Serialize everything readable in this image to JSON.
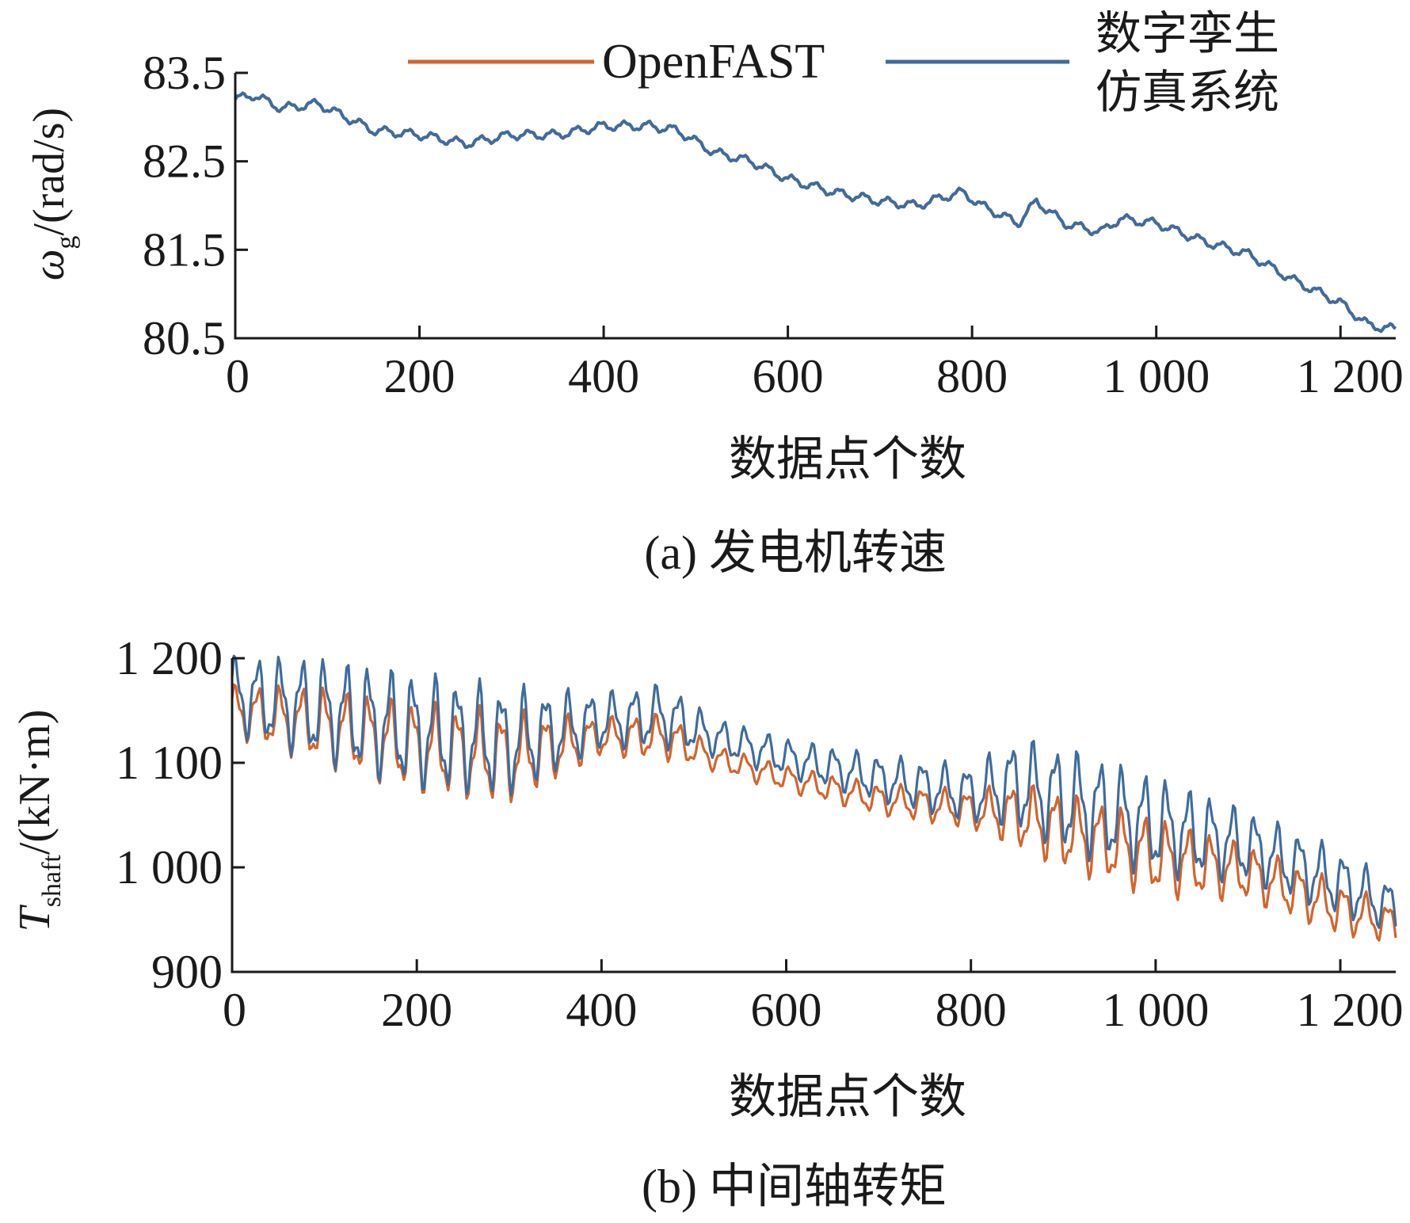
{
  "legend": {
    "openfast_label": "OpenFAST",
    "twin_label_line1": "数字孪生",
    "twin_label_line2": "仿真系统"
  },
  "colors": {
    "openfast": "#D2652C",
    "twin": "#3F6C9E",
    "axis": "#1a1a1a"
  },
  "chart_data": [
    {
      "type": "line",
      "caption_prefix": "(a)",
      "caption": "发电机转速",
      "xlabel": "数据点个数",
      "ylabel_symbol": "ω",
      "ylabel_sub": "g",
      "ylabel_unit": "/(rad/s)",
      "xlim": [
        0,
        1260
      ],
      "ylim": [
        80.5,
        83.5
      ],
      "xticks": [
        0,
        200,
        400,
        600,
        800,
        1000,
        1200
      ],
      "xtick_labels": [
        "0",
        "200",
        "400",
        "600",
        "800",
        "1 000",
        "1 200"
      ],
      "yticks": [
        80.5,
        81.5,
        82.5,
        83.5
      ],
      "ytick_labels": [
        "80.5",
        "81.5",
        "82.5",
        "83.5"
      ],
      "series": [
        {
          "name": "OpenFAST",
          "x": [
            0,
            20,
            50,
            90,
            120,
            150,
            200,
            250,
            300,
            350,
            400,
            450,
            480,
            520,
            560,
            600,
            650,
            700,
            740,
            770,
            790,
            810,
            850,
            870,
            900,
            940,
            960,
            1000,
            1050,
            1100,
            1150,
            1200,
            1230,
            1260
          ],
          "y": [
            83.2,
            83.25,
            83.1,
            83.15,
            83.0,
            82.85,
            82.8,
            82.7,
            82.8,
            82.8,
            82.9,
            82.9,
            82.85,
            82.6,
            82.5,
            82.3,
            82.15,
            82.05,
            82.0,
            82.1,
            82.15,
            82.0,
            81.8,
            82.05,
            81.8,
            81.7,
            81.85,
            81.8,
            81.6,
            81.45,
            81.15,
            80.9,
            80.65,
            80.6
          ]
        },
        {
          "name": "数字孪生仿真系统",
          "x": [
            0,
            20,
            50,
            90,
            120,
            150,
            200,
            250,
            300,
            350,
            400,
            450,
            480,
            520,
            560,
            600,
            650,
            700,
            740,
            770,
            790,
            810,
            850,
            870,
            900,
            940,
            960,
            1000,
            1050,
            1100,
            1150,
            1200,
            1230,
            1260
          ],
          "y": [
            83.2,
            83.25,
            83.1,
            83.15,
            83.0,
            82.85,
            82.8,
            82.7,
            82.8,
            82.8,
            82.9,
            82.9,
            82.85,
            82.6,
            82.5,
            82.3,
            82.15,
            82.05,
            82.0,
            82.1,
            82.15,
            82.0,
            81.8,
            82.05,
            81.8,
            81.7,
            81.85,
            81.8,
            81.6,
            81.45,
            81.15,
            80.9,
            80.65,
            80.6
          ]
        }
      ]
    },
    {
      "type": "line",
      "caption_prefix": "(b)",
      "caption": "中间轴转矩",
      "xlabel": "数据点个数",
      "ylabel_symbol": "T",
      "ylabel_sub": "shaft",
      "ylabel_unit": "/(kN·m)",
      "xlim": [
        0,
        1260
      ],
      "ylim": [
        900,
        1200
      ],
      "xticks": [
        0,
        200,
        400,
        600,
        800,
        1000,
        1200
      ],
      "xtick_labels": [
        "0",
        "200",
        "400",
        "600",
        "800",
        "1 000",
        "1 200"
      ],
      "yticks": [
        900,
        1000,
        1100,
        1200
      ],
      "ytick_labels": [
        "900",
        "1 000",
        "1 100",
        "1 200"
      ],
      "series": [
        {
          "name": "OpenFAST",
          "x": [
            0,
            100,
            200,
            300,
            400,
            470,
            520,
            600,
            700,
            800,
            850,
            900,
            1000,
            1100,
            1200,
            1260
          ],
          "y": [
            1150,
            1135,
            1115,
            1105,
            1125,
            1125,
            1105,
            1085,
            1065,
            1055,
            1050,
            1035,
            1010,
            995,
            960,
            945
          ],
          "amp": [
            20,
            30,
            35,
            35,
            15,
            18,
            10,
            10,
            12,
            15,
            25,
            30,
            30,
            22,
            20,
            15
          ]
        },
        {
          "name": "数字孪生仿真系统",
          "x": [
            0,
            100,
            200,
            300,
            400,
            470,
            520,
            600,
            700,
            800,
            850,
            900,
            1000,
            1100,
            1200,
            1260
          ],
          "y": [
            1165,
            1150,
            1130,
            1120,
            1140,
            1145,
            1125,
            1105,
            1085,
            1070,
            1080,
            1065,
            1040,
            1020,
            985,
            960
          ],
          "amp": [
            30,
            40,
            45,
            42,
            22,
            25,
            15,
            15,
            18,
            22,
            35,
            40,
            38,
            28,
            25,
            20
          ]
        }
      ]
    }
  ]
}
